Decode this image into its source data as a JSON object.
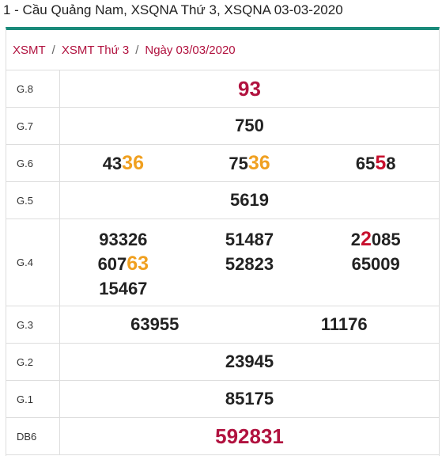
{
  "page": {
    "title": "1 - Cầu Quảng Nam, XSQNA Thứ 3, XSQNA 03-03-2020"
  },
  "breadcrumb": {
    "items": [
      "XSMT",
      "XSMT Thứ 3",
      "Ngày 03/03/2020"
    ],
    "separator": "/"
  },
  "results": {
    "g8": {
      "label": "G.8",
      "value": "93"
    },
    "g7": {
      "label": "G.7",
      "value": "750"
    },
    "g6": {
      "label": "G.6",
      "values": [
        {
          "head": "43",
          "tail": "36",
          "end": ""
        },
        {
          "head": "75",
          "tail": "36",
          "end": ""
        },
        {
          "head": "65",
          "tail": "5",
          "end": "8"
        }
      ]
    },
    "g5": {
      "label": "G.5",
      "value": "5619"
    },
    "g4": {
      "label": "G.4",
      "col1": [
        {
          "head": "93326",
          "tail": "",
          "end": ""
        },
        {
          "head": "607",
          "tail": "63",
          "end": ""
        },
        {
          "head": "15467",
          "tail": "",
          "end": ""
        }
      ],
      "col2": [
        "51487",
        "52823"
      ],
      "col3": [
        {
          "head": "2",
          "tail": "2",
          "end": "085"
        },
        {
          "head": "65009",
          "tail": "",
          "end": ""
        }
      ]
    },
    "g3": {
      "label": "G.3",
      "values": [
        "63955",
        "11176"
      ]
    },
    "g2": {
      "label": "G.2",
      "value": "23945"
    },
    "g1": {
      "label": "G.1",
      "value": "85175"
    },
    "db": {
      "label": "DB6",
      "value": "592831"
    }
  },
  "colors": {
    "accent": "#1a8a7a",
    "special": "#b1123f",
    "highlight": "#f0a020",
    "red": "#c8102e"
  }
}
